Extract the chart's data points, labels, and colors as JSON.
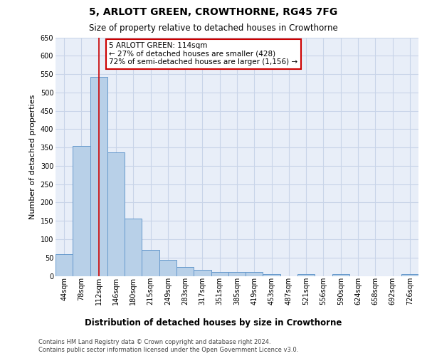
{
  "title": "5, ARLOTT GREEN, CROWTHORNE, RG45 7FG",
  "subtitle": "Size of property relative to detached houses in Crowthorne",
  "xlabel_bottom": "Distribution of detached houses by size in Crowthorne",
  "ylabel": "Number of detached properties",
  "bar_labels": [
    "44sqm",
    "78sqm",
    "112sqm",
    "146sqm",
    "180sqm",
    "215sqm",
    "249sqm",
    "283sqm",
    "317sqm",
    "351sqm",
    "385sqm",
    "419sqm",
    "453sqm",
    "487sqm",
    "521sqm",
    "556sqm",
    "590sqm",
    "624sqm",
    "658sqm",
    "692sqm",
    "726sqm"
  ],
  "bar_values": [
    60,
    355,
    542,
    337,
    157,
    70,
    43,
    25,
    17,
    10,
    10,
    10,
    5,
    0,
    5,
    0,
    5,
    0,
    0,
    0,
    5
  ],
  "bar_color": "#b8d0e8",
  "bar_edge_color": "#6699cc",
  "vline_x_index": 2,
  "vline_color": "#cc0000",
  "annotation_line1": "5 ARLOTT GREEN: 114sqm",
  "annotation_line2": "← 27% of detached houses are smaller (428)",
  "annotation_line3": "72% of semi-detached houses are larger (1,156) →",
  "annotation_box_color": "#ffffff",
  "annotation_box_edge_color": "#cc0000",
  "ylim": [
    0,
    650
  ],
  "yticks": [
    0,
    50,
    100,
    150,
    200,
    250,
    300,
    350,
    400,
    450,
    500,
    550,
    600,
    650
  ],
  "grid_color": "#c8d4e8",
  "plot_bg_color": "#e8eef8",
  "title_fontsize": 10,
  "subtitle_fontsize": 8.5,
  "ylabel_fontsize": 8,
  "xlabel_bottom_fontsize": 8.5,
  "tick_fontsize": 7,
  "annotation_fontsize": 7.5,
  "footer1": "Contains HM Land Registry data © Crown copyright and database right 2024.",
  "footer2": "Contains public sector information licensed under the Open Government Licence v3.0."
}
